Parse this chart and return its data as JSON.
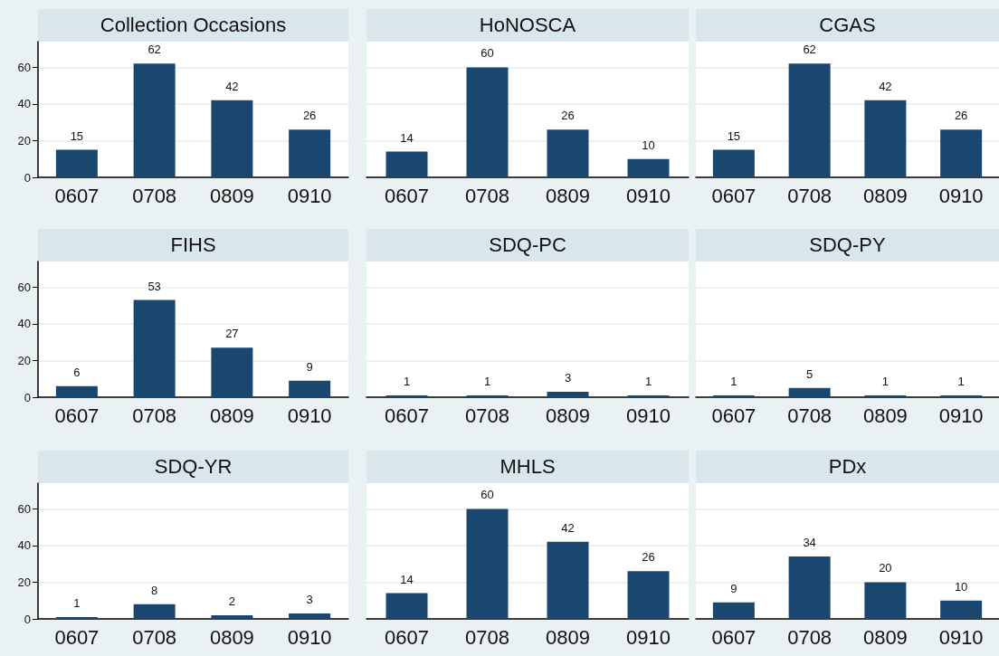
{
  "chart_data": [
    {
      "type": "bar",
      "title": "Collection Occasions",
      "categories": [
        "0607",
        "0708",
        "0809",
        "0910"
      ],
      "values": [
        15,
        62,
        42,
        26
      ],
      "color": "#1a476f",
      "ylim": [
        0,
        74
      ],
      "yticks": [
        0,
        20,
        40,
        60
      ],
      "grid": "y",
      "data_labels": true
    },
    {
      "type": "bar",
      "title": "HoNOSCA",
      "categories": [
        "0607",
        "0708",
        "0809",
        "0910"
      ],
      "values": [
        14,
        60,
        26,
        10
      ],
      "color": "#1a476f",
      "ylim": [
        0,
        74
      ],
      "yticks": [
        0,
        20,
        40,
        60
      ],
      "grid": "y",
      "data_labels": true,
      "tick_labels": "x"
    },
    {
      "type": "bar",
      "title": "CGAS",
      "categories": [
        "0607",
        "0708",
        "0809",
        "0910"
      ],
      "values": [
        15,
        62,
        42,
        26
      ],
      "color": "#1a476f",
      "ylim": [
        0,
        74
      ],
      "yticks": [
        0,
        20,
        40,
        60
      ],
      "grid": "y",
      "data_labels": true,
      "tick_labels": "x"
    },
    {
      "type": "bar",
      "title": "FIHS",
      "categories": [
        "0607",
        "0708",
        "0809",
        "0910"
      ],
      "values": [
        6,
        53,
        27,
        9
      ],
      "color": "#1a476f",
      "ylim": [
        0,
        74
      ],
      "yticks": [
        0,
        20,
        40,
        60
      ],
      "grid": "y",
      "data_labels": true
    },
    {
      "type": "bar",
      "title": "SDQ-PC",
      "categories": [
        "0607",
        "0708",
        "0809",
        "0910"
      ],
      "values": [
        1,
        1,
        3,
        1
      ],
      "color": "#1a476f",
      "ylim": [
        0,
        74
      ],
      "yticks": [
        0,
        20,
        40,
        60
      ],
      "grid": "y",
      "data_labels": true,
      "tick_labels": "x"
    },
    {
      "type": "bar",
      "title": "SDQ-PY",
      "categories": [
        "0607",
        "0708",
        "0809",
        "0910"
      ],
      "values": [
        1,
        5,
        1,
        1
      ],
      "color": "#1a476f",
      "ylim": [
        0,
        74
      ],
      "yticks": [
        0,
        20,
        40,
        60
      ],
      "grid": "y",
      "data_labels": true,
      "tick_labels": "x"
    },
    {
      "type": "bar",
      "title": "SDQ-YR",
      "categories": [
        "0607",
        "0708",
        "0809",
        "0910"
      ],
      "values": [
        1,
        8,
        2,
        3
      ],
      "color": "#1a476f",
      "ylim": [
        0,
        74
      ],
      "yticks": [
        0,
        20,
        40,
        60
      ],
      "grid": "y",
      "data_labels": true
    },
    {
      "type": "bar",
      "title": "MHLS",
      "categories": [
        "0607",
        "0708",
        "0809",
        "0910"
      ],
      "values": [
        14,
        60,
        42,
        26
      ],
      "color": "#1a476f",
      "ylim": [
        0,
        74
      ],
      "yticks": [
        0,
        20,
        40,
        60
      ],
      "grid": "y",
      "data_labels": true,
      "tick_labels": "x"
    },
    {
      "type": "bar",
      "title": "PDx",
      "categories": [
        "0607",
        "0708",
        "0809",
        "0910"
      ],
      "values": [
        9,
        34,
        20,
        10
      ],
      "color": "#1a476f",
      "ylim": [
        0,
        74
      ],
      "yticks": [
        0,
        20,
        40,
        60
      ],
      "grid": "y",
      "data_labels": true,
      "tick_labels": "x"
    }
  ]
}
